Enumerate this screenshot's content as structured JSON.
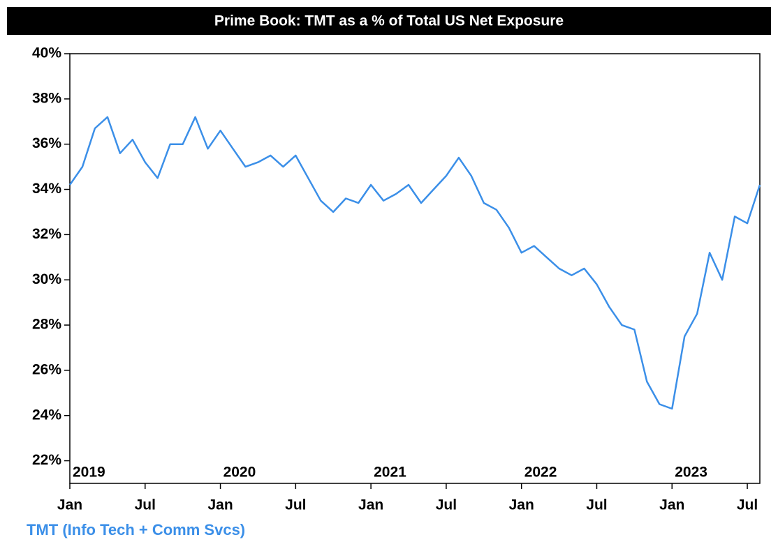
{
  "chart_data": {
    "type": "line",
    "title": "Prime Book: TMT as a % of Total US Net Exposure",
    "x": [
      "2019-01",
      "2019-02",
      "2019-03",
      "2019-04",
      "2019-05",
      "2019-06",
      "2019-07",
      "2019-08",
      "2019-09",
      "2019-10",
      "2019-11",
      "2019-12",
      "2020-01",
      "2020-02",
      "2020-03",
      "2020-04",
      "2020-05",
      "2020-06",
      "2020-07",
      "2020-08",
      "2020-09",
      "2020-10",
      "2020-11",
      "2020-12",
      "2021-01",
      "2021-02",
      "2021-03",
      "2021-04",
      "2021-05",
      "2021-06",
      "2021-07",
      "2021-08",
      "2021-09",
      "2021-10",
      "2021-11",
      "2021-12",
      "2022-01",
      "2022-02",
      "2022-03",
      "2022-04",
      "2022-05",
      "2022-06",
      "2022-07",
      "2022-08",
      "2022-09",
      "2022-10",
      "2022-11",
      "2022-12",
      "2023-01",
      "2023-02",
      "2023-03",
      "2023-04",
      "2023-05",
      "2023-06",
      "2023-07",
      "2023-08"
    ],
    "series": [
      {
        "name": "TMT (Info Tech + Comm Svcs)",
        "color": "#3b8fe8",
        "values": [
          34.2,
          35.0,
          36.7,
          37.2,
          35.6,
          36.2,
          35.2,
          34.5,
          36.0,
          36.0,
          37.2,
          35.8,
          36.6,
          35.8,
          35.0,
          35.2,
          35.5,
          35.0,
          35.5,
          34.5,
          33.5,
          33.0,
          33.6,
          33.4,
          34.2,
          33.5,
          33.8,
          34.2,
          33.4,
          34.0,
          34.6,
          35.4,
          34.6,
          33.4,
          33.1,
          32.3,
          31.2,
          31.5,
          31.0,
          30.5,
          30.2,
          30.5,
          29.8,
          28.8,
          28.0,
          27.8,
          25.5,
          24.5,
          24.3,
          27.5,
          28.5,
          31.2,
          30.0,
          32.8,
          32.5,
          34.2
        ]
      }
    ],
    "xlim": [
      "2019-01",
      "2023-08"
    ],
    "xticks": [
      {
        "value": "2019-01",
        "label": "Jan"
      },
      {
        "value": "2019-07",
        "label": "Jul"
      },
      {
        "value": "2020-01",
        "label": "Jan"
      },
      {
        "value": "2020-07",
        "label": "Jul"
      },
      {
        "value": "2021-01",
        "label": "Jan"
      },
      {
        "value": "2021-07",
        "label": "Jul"
      },
      {
        "value": "2022-01",
        "label": "Jan"
      },
      {
        "value": "2022-07",
        "label": "Jul"
      },
      {
        "value": "2023-01",
        "label": "Jan"
      },
      {
        "value": "2023-07",
        "label": "Jul"
      }
    ],
    "year_labels": [
      {
        "value": "2019-01",
        "label": "2019"
      },
      {
        "value": "2020-01",
        "label": "2020"
      },
      {
        "value": "2021-01",
        "label": "2021"
      },
      {
        "value": "2022-01",
        "label": "2022"
      },
      {
        "value": "2023-01",
        "label": "2023"
      }
    ],
    "ylim": [
      21,
      40
    ],
    "yticks": [
      {
        "value": 22,
        "label": "22%"
      },
      {
        "value": 24,
        "label": "24%"
      },
      {
        "value": 26,
        "label": "26%"
      },
      {
        "value": 28,
        "label": "28%"
      },
      {
        "value": 30,
        "label": "30%"
      },
      {
        "value": 32,
        "label": "32%"
      },
      {
        "value": 34,
        "label": "34%"
      },
      {
        "value": 36,
        "label": "36%"
      },
      {
        "value": 38,
        "label": "38%"
      },
      {
        "value": 40,
        "label": "40%"
      }
    ]
  }
}
